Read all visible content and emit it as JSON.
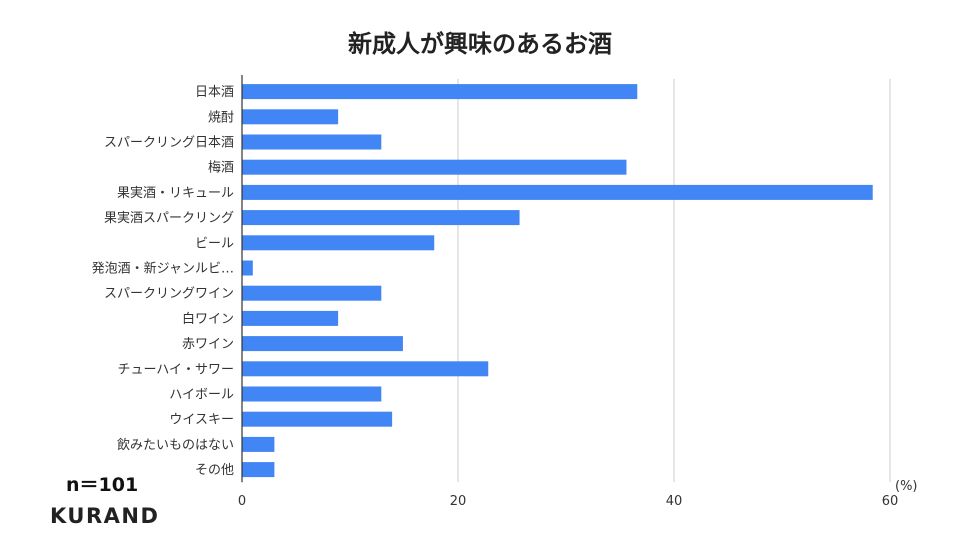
{
  "chart_data": {
    "type": "bar",
    "orientation": "horizontal",
    "title": "新成人が興味のあるお酒",
    "unit_label": "(%)",
    "categories": [
      "日本酒",
      "焼酎",
      "スパークリング日本酒",
      "梅酒",
      "果実酒・リキュール",
      "果実酒スパークリング",
      "ビール",
      "発泡酒・新ジャンルビ…",
      "スパークリングワイン",
      "白ワイン",
      "赤ワイン",
      "チューハイ・サワー",
      "ハイボール",
      "ウイスキー",
      "飲みたいものはない",
      "その他"
    ],
    "values": [
      36.6,
      8.9,
      12.9,
      35.6,
      58.4,
      25.7,
      17.8,
      1.0,
      12.9,
      8.9,
      14.9,
      22.8,
      12.9,
      13.9,
      3.0,
      3.0
    ],
    "xlim": [
      0,
      60
    ],
    "xticks": [
      "0",
      "20",
      "40",
      "60"
    ],
    "xtick_values": [
      0,
      20,
      40,
      60
    ],
    "grid": true,
    "bar_color": "#4285f4"
  },
  "annotations": {
    "sample_size": "n＝101",
    "brand": "KURAND"
  }
}
